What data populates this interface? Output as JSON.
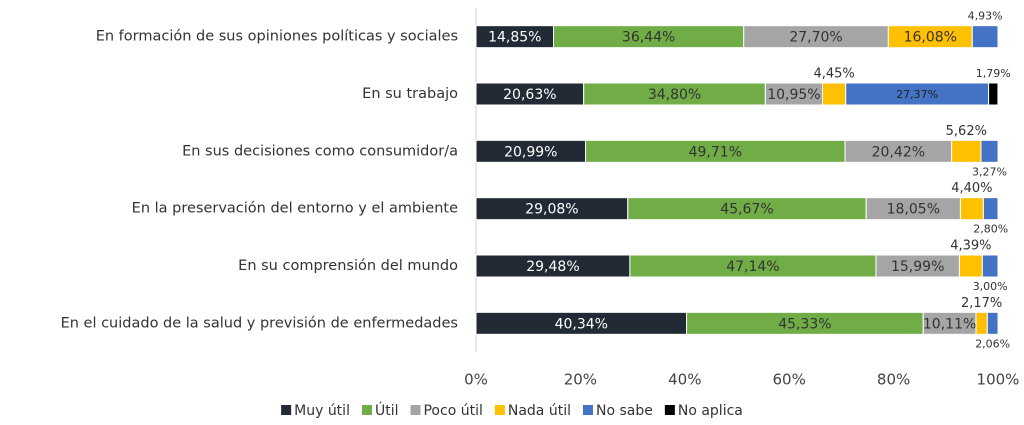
{
  "chart_data": {
    "type": "stacked-bar-horizontal",
    "categories": [
      "En formación de sus opiniones políticas y sociales",
      "En su trabajo",
      "En sus decisiones como consumidor/a",
      "En la preservación del entorno y el ambiente",
      "En su comprensión del mundo",
      "En el cuidado de la salud y previsión de enfermedades"
    ],
    "series": [
      {
        "name": "Muy útil",
        "color": "#222a35",
        "values": [
          14.85,
          20.63,
          20.99,
          29.08,
          29.48,
          40.34
        ],
        "value_labels": [
          "14,85%",
          "20,63%",
          "20,99%",
          "29,08%",
          "29,48%",
          "40,34%"
        ]
      },
      {
        "name": "Útil",
        "color": "#70ad47",
        "values": [
          36.44,
          34.8,
          49.71,
          45.67,
          47.14,
          45.33
        ],
        "value_labels": [
          "36,44%",
          "34,80%",
          "49,71%",
          "45,67%",
          "47,14%",
          "45,33%"
        ]
      },
      {
        "name": "Poco útil",
        "color": "#a5a5a5",
        "values": [
          27.7,
          10.95,
          20.42,
          18.05,
          15.99,
          10.11
        ],
        "value_labels": [
          "27,70%",
          "10,95%",
          "20,42%",
          "18,05%",
          "15,99%",
          "10,11%"
        ]
      },
      {
        "name": "Nada útil",
        "color": "#ffc000",
        "values": [
          16.08,
          4.45,
          5.62,
          4.4,
          4.39,
          2.17
        ],
        "value_labels": [
          "16,08%",
          "4,45%",
          "5,62%",
          "4,40%",
          "4,39%",
          "2,17%"
        ]
      },
      {
        "name": "No sabe",
        "color": "#4472c4",
        "values": [
          4.93,
          27.37,
          3.27,
          2.8,
          3.0,
          2.06
        ],
        "value_labels": [
          "4,93%",
          "27,37%",
          "3,27%",
          "2,80%",
          "3,00%",
          "2,06%"
        ]
      },
      {
        "name": "No aplica",
        "color": "#000000",
        "values": [
          null,
          1.79,
          null,
          null,
          null,
          null
        ],
        "value_labels": [
          null,
          "1,79%",
          null,
          null,
          null,
          null
        ]
      }
    ],
    "xlim": [
      0,
      100
    ],
    "xticks": [
      {
        "value": 0,
        "label": "0%"
      },
      {
        "value": 20,
        "label": "20%"
      },
      {
        "value": 40,
        "label": "40%"
      },
      {
        "value": 60,
        "label": "60%"
      },
      {
        "value": 80,
        "label": "80%"
      },
      {
        "value": 100,
        "label": "100%"
      }
    ],
    "legend": "bottom"
  }
}
